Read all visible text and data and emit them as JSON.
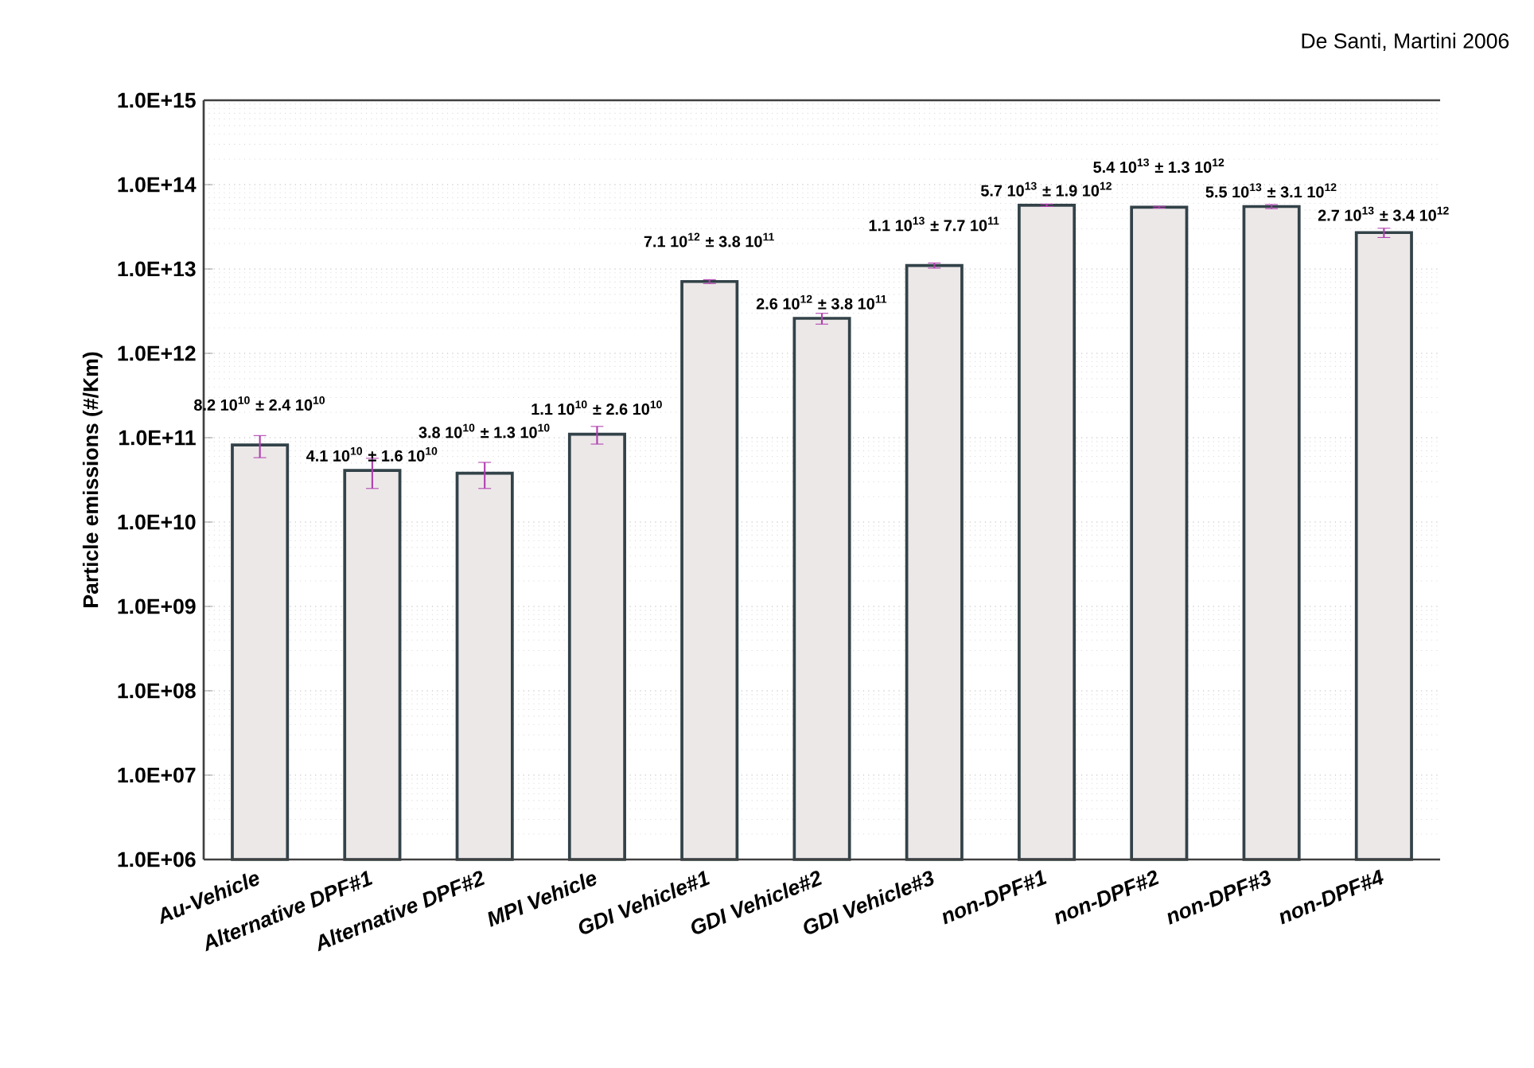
{
  "chart_data": {
    "type": "bar",
    "ylabel": "Particle emissions (#/Km)",
    "categories": [
      "Au-Vehicle",
      "Alternative DPF#1",
      "Alternative DPF#2",
      "MPI Vehicle",
      "GDI Vehicle#1",
      "GDI Vehicle#2",
      "GDI Vehicle#3",
      "non-DPF#1",
      "non-DPF#2",
      "non-DPF#3",
      "non-DPF#4"
    ],
    "series": [
      {
        "color": "#ece8e8",
        "values": [
          82000000000.0,
          41000000000.0,
          38000000000.0,
          110000000000.0,
          7100000000000.0,
          2600000000000.0,
          11000000000000.0,
          57000000000000.0,
          54000000000000.0,
          55000000000000.0,
          27000000000000.0
        ],
        "errors": [
          24000000000.0,
          16000000000.0,
          13000000000.0,
          26000000000.0,
          380000000000.0,
          380000000000.0,
          770000000000.0,
          1900000000000.0,
          1300000000000.0,
          3100000000000.0,
          3400000000000.0
        ]
      }
    ],
    "annotations": [
      "De Santi, Martini 2006",
      {
        "text": "8.2 10$^{10}$ ± 2.4 10$^{10}$",
        "x": "Au-Vehicle",
        "y": 82000000000.0
      },
      {
        "text": "4.1 10$^{10}$ ± 1.6 10$^{10}$",
        "x": "Alternative DPF#1",
        "y": 41000000000.0
      },
      {
        "text": "3.8 10$^{10}$ ± 1.3 10$^{10}$",
        "x": "Alternative DPF#2",
        "y": 38000000000.0
      },
      {
        "text": "1.1 10$^{10}$ ± 2.6 10$^{10}$",
        "x": "MPI Vehicle",
        "y": 110000000000.0
      },
      {
        "text": "7.1 10$^{12}$ ± 3.8 10$^{11}$",
        "x": "GDI Vehicle#1",
        "y": 7100000000000.0
      },
      {
        "text": "2.6 10$^{12}$ ± 3.8 10$^{11}$",
        "x": "GDI Vehicle#2",
        "y": 2600000000000.0
      },
      {
        "text": "1.1 10$^{13}$ ± 7.7 10$^{11}$",
        "x": "GDI Vehicle#3",
        "y": 11000000000000.0
      },
      {
        "text": "5.7 10$^{13}$ ± 1.9 10$^{12}$",
        "x": "non-DPF#1",
        "y": 57000000000000.0
      },
      {
        "text": "5.4 10$^{13}$ ± 1.3 10$^{12}$",
        "x": "non-DPF#2",
        "y": 54000000000000.0
      },
      {
        "text": "5.5 10$^{13}$ ± 3.1 10$^{12}$",
        "x": "non-DPF#3",
        "y": 55000000000000.0
      },
      {
        "text": "2.7 10$^{13}$ ± 3.4 10$^{12}$",
        "x": "non-DPF#4",
        "y": 27000000000000.0
      }
    ],
    "log": "y",
    "ylim": [
      1000000.0,
      1000000000000000.0
    ],
    "yticks": [
      {
        "value": 1000000.0,
        "label": "1.0E+06"
      },
      {
        "value": 10000000.0,
        "label": "1.0E+07"
      },
      {
        "value": 100000000.0,
        "label": "1.0E+08"
      },
      {
        "value": 1000000000.0,
        "label": "1.0E+09"
      },
      {
        "value": 10000000000.0,
        "label": "1.0E+10"
      },
      {
        "value": 100000000000.0,
        "label": "1.0E+11"
      },
      {
        "value": 1000000000000.0,
        "label": "1.0E+12"
      },
      {
        "value": 10000000000000.0,
        "label": "1.0E+13"
      },
      {
        "value": 100000000000000.0,
        "label": "1.0E+14"
      },
      {
        "value": 1000000000000000.0,
        "label": "1.0E+15"
      }
    ],
    "grid": "y"
  }
}
